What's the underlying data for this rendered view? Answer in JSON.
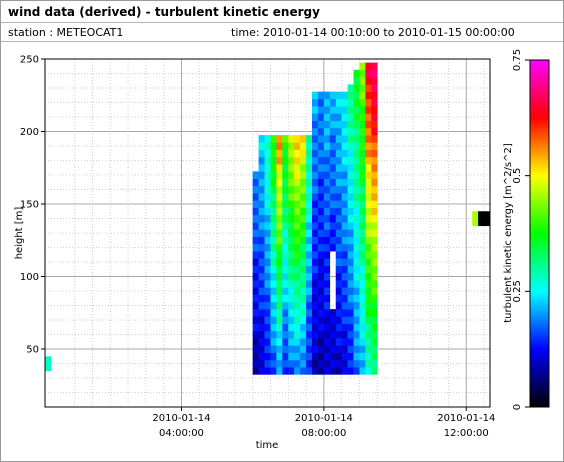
{
  "header": {
    "title": "wind data (derived) - turbulent kinetic energy",
    "station": "station : METEOCAT1",
    "time_range": "time: 2010-01-14 00:10:00 to 2010-01-15 00:00:00"
  },
  "chart_data": {
    "type": "heatmap",
    "title": "wind data (derived) - turbulent kinetic energy",
    "xlabel": "time",
    "ylabel": "height [m]",
    "colorbar_label": "turbulent kinetic energy [m^2/s^2]",
    "x_ticks": [
      {
        "line1": "2010-01-14",
        "line2": "04:00:00"
      },
      {
        "line1": "2010-01-14",
        "line2": "08:00:00"
      },
      {
        "line1": "2010-01-14",
        "line2": "12:00:00"
      }
    ],
    "y_ticks": [
      "50",
      "100",
      "150",
      "200",
      "250"
    ],
    "colorbar_ticks": [
      "0",
      "0.25",
      "0.5",
      "0.75"
    ],
    "xlim": [
      "2010-01-14 00:10",
      "2010-01-14 12:40"
    ],
    "ylim": [
      10,
      250
    ],
    "clim": [
      0,
      0.75
    ],
    "grid": true,
    "colormap": [
      "#000000",
      "#0000ff",
      "#00ffff",
      "#00ff00",
      "#ffff00",
      "#ff0000",
      "#ff00ff"
    ],
    "description_cells": [
      {
        "x": "00:10",
        "y": 40,
        "value": 0.28
      },
      {
        "x": "12:10",
        "y": 140,
        "value": 0.46
      },
      {
        "x": "12:20",
        "y": 140,
        "value": 0.0
      },
      {
        "x": "12:30",
        "y": 140,
        "value": 0.0
      }
    ],
    "field": {
      "time_start": "06:00",
      "time_step_min": 10,
      "n_times": 21,
      "height_min": 35,
      "height_step": 5,
      "profiles": [
        {
          "top": 170,
          "values": [
            0.15
          ]
        },
        {
          "top": 195,
          "values": [
            0.18
          ]
        },
        {
          "top": 195,
          "values": [
            0.22
          ]
        },
        {
          "top": 195,
          "values": [
            0.3
          ]
        },
        {
          "top": 195,
          "values": [
            0.4
          ]
        },
        {
          "top": 195,
          "values": [
            0.28
          ]
        },
        {
          "top": 195,
          "values": [
            0.34
          ]
        },
        {
          "top": 195,
          "values": [
            0.38
          ]
        },
        {
          "top": 195,
          "values": [
            0.36
          ]
        },
        {
          "top": 195,
          "values": [
            0.24
          ]
        },
        {
          "top": 225,
          "values": [
            0.16
          ]
        },
        {
          "top": 225,
          "values": [
            0.15
          ]
        },
        {
          "top": 225,
          "values": [
            0.17
          ]
        },
        {
          "top": 225,
          "values": [
            0.16
          ]
        },
        {
          "top": 225,
          "values": [
            0.18
          ]
        },
        {
          "top": 225,
          "values": [
            0.2
          ]
        },
        {
          "top": 230,
          "values": [
            0.24
          ]
        },
        {
          "top": 240,
          "values": [
            0.3
          ]
        },
        {
          "top": 245,
          "values": [
            0.36
          ]
        },
        {
          "top": 245,
          "values": [
            0.5
          ]
        },
        {
          "top": 245,
          "values": [
            0.66
          ]
        }
      ]
    }
  }
}
